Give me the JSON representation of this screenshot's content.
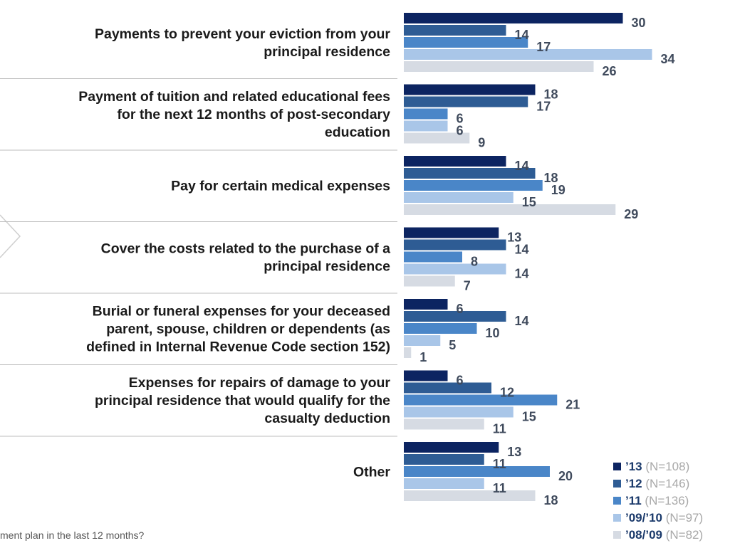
{
  "chart_data": {
    "type": "bar",
    "orientation": "horizontal",
    "categories": [
      "Payments to prevent your eviction from your principal residence",
      "Payment of tuition and related educational fees for the next 12 months of post-secondary education",
      "Pay for certain medical expenses",
      "Cover the costs related to the purchase of a principal residence",
      "Burial or funeral expenses for your deceased parent, spouse, children or dependents (as defined in Internal Revenue Code section 152)",
      "Expenses for repairs of damage to your principal residence that would qualify for the casualty deduction",
      "Other"
    ],
    "category_lines": [
      [
        "Payments to prevent your eviction from your",
        "principal residence"
      ],
      [
        "Payment of tuition and related educational fees",
        "for the next 12 months of post-secondary",
        "education"
      ],
      [
        "Pay for certain medical expenses"
      ],
      [
        "Cover the costs related to the purchase of a",
        "principal residence"
      ],
      [
        "Burial or funeral expenses for your deceased",
        "parent, spouse, children or dependents (as",
        "defined in Internal Revenue Code section 152)"
      ],
      [
        "Expenses for repairs of damage to your",
        "principal residence that would qualify for the",
        "casualty deduction"
      ],
      [
        "Other"
      ]
    ],
    "series": [
      {
        "name": "’13",
        "n": "(N=108)",
        "color": "#0c2461",
        "values": [
          30,
          18,
          14,
          13,
          6,
          6,
          13
        ]
      },
      {
        "name": "’12",
        "n": "(N=146)",
        "color": "#2e5c94",
        "values": [
          14,
          17,
          18,
          14,
          14,
          12,
          11
        ]
      },
      {
        "name": "’11",
        "n": "(N=136)",
        "color": "#4a86c8",
        "values": [
          17,
          6,
          19,
          8,
          10,
          21,
          20
        ]
      },
      {
        "name": "’09/’10",
        "n": "(N=97)",
        "color": "#a9c6e8",
        "values": [
          34,
          6,
          15,
          14,
          5,
          15,
          11
        ]
      },
      {
        "name": "’08/’09",
        "n": "(N=82)",
        "color": "#d6dbe3",
        "values": [
          26,
          9,
          29,
          7,
          1,
          11,
          18
        ]
      }
    ],
    "legend_position": "bottom-right",
    "grid": false
  },
  "footnote": "ment plan in the last 12 months?"
}
